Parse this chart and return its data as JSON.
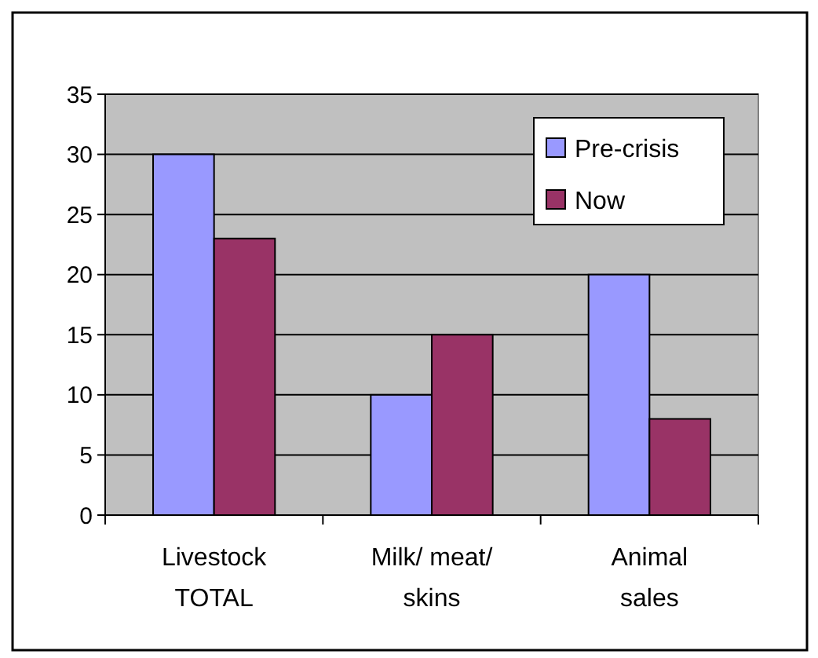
{
  "chart_data": {
    "type": "bar",
    "categories": [
      "Livestock TOTAL",
      "Milk/ meat/ skins",
      "Animal sales"
    ],
    "series": [
      {
        "name": "Pre-crisis",
        "color": "#9999ff",
        "values": [
          30,
          10,
          20
        ]
      },
      {
        "name": "Now",
        "color": "#993366",
        "values": [
          23,
          15,
          8
        ]
      }
    ],
    "ylim": [
      0,
      35
    ],
    "yticks": [
      0,
      5,
      10,
      15,
      20,
      25,
      30,
      35
    ],
    "grid": "y",
    "legend": "top right"
  }
}
